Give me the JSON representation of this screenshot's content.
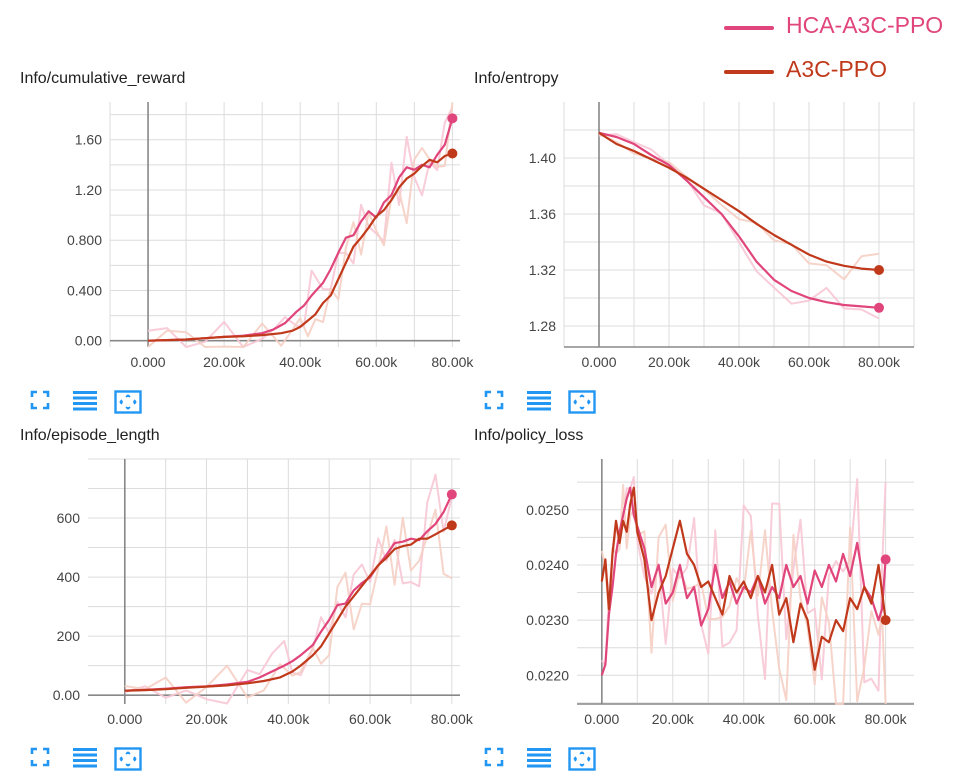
{
  "legend": {
    "items": [
      {
        "label": "HCA-A3C-PPO",
        "color": "#e0457b"
      },
      {
        "label": "A3C-PPO",
        "color": "#c0391b"
      }
    ]
  },
  "colors": {
    "hca": "#e0457b",
    "a3c": "#c0391b",
    "hca_raw": "#f7c6d4",
    "a3c_raw": "#f5cfc4",
    "grid": "#dcdcdc",
    "axis": "#888888",
    "toolbar_icon": "#2196f3"
  },
  "toolbar_icons": [
    "expand-icon",
    "list-lines-icon",
    "fit-domain-icon"
  ],
  "chart_data": [
    {
      "type": "line",
      "title": "Info/cumulative_reward",
      "xlabel": "",
      "ylabel": "",
      "xlim": [
        -10000,
        82000
      ],
      "ylim": [
        -0.05,
        1.9
      ],
      "x_ticks": [
        0,
        20000,
        40000,
        60000,
        80000
      ],
      "x_tick_labels": [
        "0.000",
        "20.00k",
        "40.00k",
        "60.00k",
        "80.00k"
      ],
      "y_ticks": [
        0,
        0.4,
        0.8,
        1.2,
        1.6
      ],
      "y_tick_labels": [
        "0.00",
        "0.400",
        "0.800",
        "1.20",
        "1.60"
      ],
      "grid": true,
      "series": [
        {
          "name": "HCA-A3C-PPO",
          "x": [
            0,
            5000,
            10000,
            15000,
            20000,
            25000,
            30000,
            33000,
            36000,
            39000,
            41000,
            43000,
            46000,
            48000,
            50000,
            52000,
            54000,
            56000,
            58000,
            60000,
            62000,
            64000,
            66000,
            68000,
            70000,
            72000,
            74000,
            76000,
            78000,
            80000
          ],
          "y": [
            0,
            0.005,
            0.01,
            0.02,
            0.03,
            0.04,
            0.06,
            0.09,
            0.14,
            0.23,
            0.28,
            0.36,
            0.46,
            0.57,
            0.7,
            0.82,
            0.84,
            0.95,
            1.03,
            0.98,
            1.1,
            1.16,
            1.3,
            1.38,
            1.36,
            1.4,
            1.38,
            1.48,
            1.56,
            1.77
          ]
        },
        {
          "name": "A3C-PPO",
          "x": [
            0,
            5000,
            10000,
            15000,
            20000,
            25000,
            30000,
            35000,
            38000,
            40000,
            42000,
            44000,
            46000,
            48000,
            50000,
            52000,
            54000,
            56000,
            58000,
            60000,
            62000,
            64000,
            66000,
            68000,
            70000,
            72000,
            74000,
            76000,
            78000,
            80000
          ],
          "y": [
            0,
            0.005,
            0.01,
            0.02,
            0.03,
            0.035,
            0.045,
            0.06,
            0.08,
            0.11,
            0.16,
            0.21,
            0.3,
            0.36,
            0.49,
            0.62,
            0.75,
            0.82,
            0.9,
            0.99,
            1.04,
            1.12,
            1.22,
            1.29,
            1.33,
            1.39,
            1.44,
            1.42,
            1.47,
            1.49
          ]
        }
      ]
    },
    {
      "type": "line",
      "title": "Info/entropy",
      "xlabel": "",
      "ylabel": "",
      "xlim": [
        -10000,
        90000
      ],
      "ylim": [
        1.265,
        1.44
      ],
      "x_ticks": [
        0,
        20000,
        40000,
        60000,
        80000
      ],
      "x_tick_labels": [
        "0.000",
        "20.00k",
        "40.00k",
        "60.00k",
        "80.00k"
      ],
      "y_ticks": [
        1.28,
        1.32,
        1.36,
        1.4
      ],
      "y_tick_labels": [
        "1.28",
        "1.32",
        "1.36",
        "1.40"
      ],
      "grid": true,
      "series": [
        {
          "name": "HCA-A3C-PPO",
          "x": [
            0,
            5000,
            10000,
            15000,
            20000,
            25000,
            30000,
            35000,
            40000,
            45000,
            50000,
            55000,
            60000,
            65000,
            70000,
            75000,
            80000
          ],
          "y": [
            1.418,
            1.415,
            1.41,
            1.402,
            1.395,
            1.384,
            1.372,
            1.36,
            1.344,
            1.326,
            1.313,
            1.305,
            1.3,
            1.297,
            1.295,
            1.294,
            1.293
          ]
        },
        {
          "name": "A3C-PPO",
          "x": [
            0,
            5000,
            10000,
            15000,
            20000,
            25000,
            30000,
            35000,
            40000,
            45000,
            50000,
            55000,
            60000,
            65000,
            70000,
            75000,
            80000
          ],
          "y": [
            1.418,
            1.41,
            1.405,
            1.399,
            1.393,
            1.386,
            1.378,
            1.37,
            1.362,
            1.353,
            1.345,
            1.338,
            1.331,
            1.326,
            1.323,
            1.321,
            1.32
          ]
        }
      ]
    },
    {
      "type": "line",
      "title": "Info/episode_length",
      "xlabel": "",
      "ylabel": "",
      "xlim": [
        -9000,
        82000
      ],
      "ylim": [
        -30,
        800
      ],
      "x_ticks": [
        0,
        20000,
        40000,
        60000,
        80000
      ],
      "x_tick_labels": [
        "0.000",
        "20.00k",
        "40.00k",
        "60.00k",
        "80.00k"
      ],
      "y_ticks": [
        0,
        200,
        400,
        600
      ],
      "y_tick_labels": [
        "0.00",
        "200",
        "400",
        "600"
      ],
      "grid": true,
      "series": [
        {
          "name": "HCA-A3C-PPO",
          "x": [
            0,
            5000,
            10000,
            15000,
            20000,
            25000,
            30000,
            33000,
            36000,
            39000,
            41000,
            43000,
            46000,
            48000,
            50000,
            52000,
            54000,
            56000,
            58000,
            60000,
            62000,
            64000,
            66000,
            68000,
            70000,
            72000,
            74000,
            76000,
            78000,
            80000
          ],
          "y": [
            15,
            18,
            22,
            27,
            30,
            36,
            45,
            60,
            80,
            100,
            115,
            135,
            170,
            215,
            255,
            305,
            310,
            355,
            380,
            400,
            440,
            475,
            515,
            520,
            530,
            525,
            555,
            580,
            620,
            680
          ]
        },
        {
          "name": "A3C-PPO",
          "x": [
            0,
            5000,
            10000,
            15000,
            20000,
            25000,
            30000,
            34000,
            38000,
            41000,
            43000,
            46000,
            48000,
            50000,
            52000,
            54000,
            56000,
            58000,
            60000,
            62000,
            64000,
            66000,
            68000,
            70000,
            72000,
            74000,
            76000,
            78000,
            80000
          ],
          "y": [
            15,
            17,
            20,
            25,
            29,
            33,
            40,
            48,
            60,
            80,
            100,
            135,
            165,
            210,
            255,
            300,
            335,
            370,
            405,
            440,
            465,
            495,
            505,
            510,
            530,
            530,
            545,
            560,
            575
          ]
        }
      ]
    },
    {
      "type": "line",
      "title": "Info/policy_loss",
      "xlabel": "",
      "ylabel": "",
      "xlim": [
        -7000,
        88000
      ],
      "ylim": [
        0.02148,
        0.02592
      ],
      "x_ticks": [
        0,
        20000,
        40000,
        60000,
        80000
      ],
      "x_tick_labels": [
        "0.000",
        "20.00k",
        "40.00k",
        "60.00k",
        "80.00k"
      ],
      "y_ticks": [
        0.022,
        0.023,
        0.024,
        0.025
      ],
      "y_tick_labels": [
        "0.0220",
        "0.0230",
        "0.0240",
        "0.0250"
      ],
      "grid": true,
      "series": [
        {
          "name": "HCA-A3C-PPO",
          "x": [
            0,
            1000,
            2000,
            3000,
            4000,
            5000,
            6000,
            7000,
            8000,
            9000,
            10000,
            12000,
            14000,
            16000,
            18000,
            20000,
            22000,
            24000,
            26000,
            28000,
            30000,
            32000,
            34000,
            36000,
            38000,
            40000,
            42000,
            44000,
            46000,
            48000,
            50000,
            52000,
            54000,
            56000,
            58000,
            60000,
            62000,
            64000,
            66000,
            68000,
            70000,
            72000,
            74000,
            76000,
            78000,
            79000,
            80000
          ],
          "y": [
            0.022,
            0.0222,
            0.0231,
            0.0236,
            0.0242,
            0.0246,
            0.0249,
            0.0252,
            0.0254,
            0.0249,
            0.0247,
            0.0243,
            0.0236,
            0.024,
            0.0233,
            0.0235,
            0.024,
            0.0234,
            0.0236,
            0.0229,
            0.0232,
            0.024,
            0.0234,
            0.0237,
            0.0233,
            0.0236,
            0.0235,
            0.0238,
            0.0233,
            0.0236,
            0.0234,
            0.024,
            0.0236,
            0.0238,
            0.0233,
            0.0239,
            0.0236,
            0.024,
            0.0237,
            0.0242,
            0.0238,
            0.0244,
            0.0236,
            0.0234,
            0.023,
            0.0232,
            0.0241
          ]
        },
        {
          "name": "A3C-PPO",
          "x": [
            0,
            1000,
            2000,
            3000,
            4000,
            5000,
            6000,
            7000,
            8000,
            9000,
            10000,
            12000,
            14000,
            16000,
            18000,
            20000,
            22000,
            24000,
            26000,
            28000,
            30000,
            32000,
            34000,
            36000,
            38000,
            40000,
            42000,
            44000,
            46000,
            48000,
            50000,
            52000,
            54000,
            56000,
            58000,
            60000,
            62000,
            64000,
            66000,
            68000,
            70000,
            72000,
            74000,
            76000,
            78000,
            79000,
            80000
          ],
          "y": [
            0.0237,
            0.0241,
            0.0232,
            0.0242,
            0.0248,
            0.0244,
            0.0248,
            0.0246,
            0.0251,
            0.0254,
            0.0246,
            0.0241,
            0.023,
            0.0235,
            0.0238,
            0.0243,
            0.0248,
            0.0242,
            0.024,
            0.0236,
            0.0237,
            0.0234,
            0.0231,
            0.0238,
            0.0235,
            0.0237,
            0.0234,
            0.0238,
            0.0235,
            0.024,
            0.0231,
            0.0234,
            0.0226,
            0.0233,
            0.023,
            0.0221,
            0.0227,
            0.0226,
            0.023,
            0.0228,
            0.0234,
            0.0232,
            0.0236,
            0.0233,
            0.024,
            0.0235,
            0.023
          ]
        }
      ]
    }
  ]
}
